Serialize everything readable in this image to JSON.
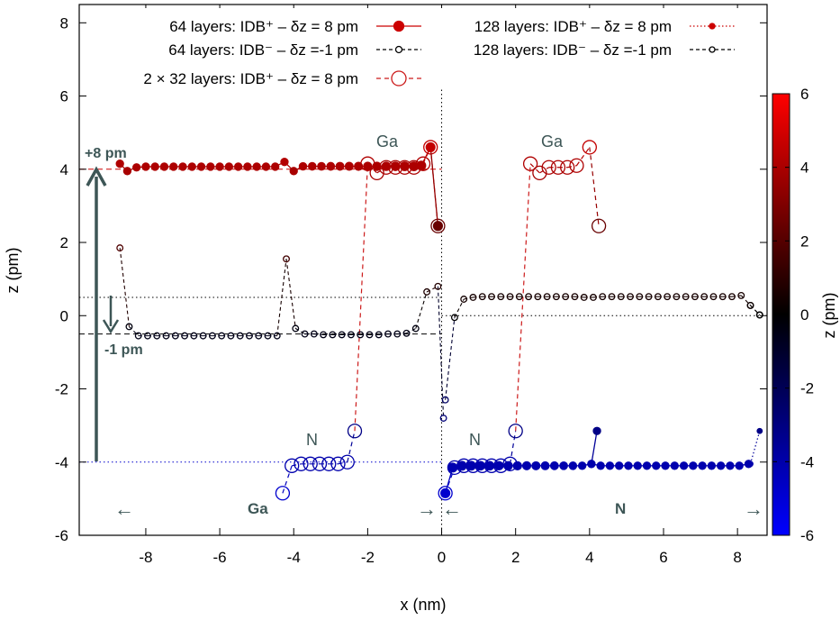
{
  "chart_data": {
    "type": "line",
    "title": "",
    "xlabel": "x (nm)",
    "ylabel": "z (pm)",
    "xlim": [
      -9.8,
      8.8
    ],
    "ylim": [
      -6,
      8.5
    ],
    "x_ticks": [
      -8,
      -6,
      -4,
      -2,
      0,
      2,
      4,
      6,
      8
    ],
    "y_ticks": [
      -6,
      -4,
      -2,
      0,
      2,
      4,
      6,
      8
    ],
    "grid": false,
    "legend_placement": "top",
    "colorbar": {
      "label": "z (pm)",
      "range": [
        -6,
        6
      ],
      "ticks": [
        -6,
        -4,
        -2,
        0,
        2,
        4,
        6
      ],
      "colors": [
        "#0000ff",
        "#000000",
        "#ff0000"
      ]
    },
    "series": [
      {
        "name": "64 layers: IDB⁺ – δz = 8 pm",
        "style": "solid-filled-large",
        "groups": [
          {
            "kind": "Ga",
            "x": [
              -8.7,
              -8.5,
              -8.25,
              -8.0,
              -7.75,
              -7.5,
              -7.25,
              -7.0,
              -6.75,
              -6.5,
              -6.25,
              -6.0,
              -5.75,
              -5.5,
              -5.25,
              -5.0,
              -4.75,
              -4.5,
              -4.25,
              -4.0,
              -3.75,
              -3.5,
              -3.25,
              -3.0,
              -2.75,
              -2.5,
              -2.25,
              -2.0,
              -1.75,
              -1.5,
              -1.25,
              -1.0,
              -0.75,
              -0.55,
              -0.3,
              -0.1
            ],
            "y": [
              4.15,
              3.95,
              4.05,
              4.07,
              4.07,
              4.07,
              4.07,
              4.07,
              4.07,
              4.07,
              4.07,
              4.07,
              4.07,
              4.07,
              4.07,
              4.07,
              4.07,
              4.07,
              4.2,
              3.95,
              4.08,
              4.08,
              4.08,
              4.08,
              4.08,
              4.08,
              4.08,
              4.08,
              4.08,
              4.08,
              4.08,
              4.08,
              4.08,
              4.1,
              4.6,
              2.45
            ]
          },
          {
            "kind": "N",
            "x": [
              0.1,
              0.3,
              0.55,
              0.8,
              1.05,
              1.3,
              1.55,
              1.8,
              2.05,
              2.3,
              2.55,
              2.8,
              3.05,
              3.3,
              3.55,
              3.8,
              4.05,
              4.3,
              4.55,
              4.8,
              5.05,
              5.3,
              5.55,
              5.8,
              6.05,
              6.3,
              6.55,
              6.8,
              7.05,
              7.3,
              7.55,
              7.8,
              8.05,
              8.3
            ],
            "y": [
              -4.85,
              -4.15,
              -4.1,
              -4.1,
              -4.1,
              -4.1,
              -4.1,
              -4.1,
              -4.1,
              -4.1,
              -4.1,
              -4.1,
              -4.1,
              -4.1,
              -4.1,
              -4.1,
              -4.05,
              -4.1,
              -4.1,
              -4.1,
              -4.1,
              -4.1,
              -4.1,
              -4.1,
              -4.1,
              -4.1,
              -4.1,
              -4.1,
              -4.1,
              -4.1,
              -4.1,
              -4.1,
              -4.1,
              -4.05
            ]
          },
          {
            "kind": "N-tail",
            "x": [
              4.05,
              4.2
            ],
            "y": [
              -4.05,
              -3.15
            ]
          }
        ]
      },
      {
        "name": "64 layers: IDB⁻ – δz =-1 pm",
        "style": "dashed-open-small",
        "groups": [
          {
            "kind": "left",
            "x": [
              -8.7,
              -8.45,
              -8.2,
              -7.95,
              -7.7,
              -7.45,
              -7.2,
              -6.95,
              -6.7,
              -6.45,
              -6.2,
              -5.95,
              -5.7,
              -5.45,
              -5.2,
              -4.95,
              -4.7,
              -4.45,
              -4.2,
              -3.95,
              -3.7,
              -3.45,
              -3.2,
              -2.95,
              -2.7,
              -2.45,
              -2.2,
              -1.95,
              -1.7,
              -1.45,
              -1.2,
              -0.95,
              -0.7,
              -0.4,
              -0.1,
              0.05
            ],
            "y": [
              1.85,
              -0.3,
              -0.55,
              -0.55,
              -0.55,
              -0.55,
              -0.55,
              -0.55,
              -0.55,
              -0.55,
              -0.55,
              -0.55,
              -0.55,
              -0.55,
              -0.55,
              -0.55,
              -0.55,
              -0.55,
              1.55,
              -0.35,
              -0.5,
              -0.5,
              -0.52,
              -0.52,
              -0.52,
              -0.52,
              -0.52,
              -0.52,
              -0.52,
              -0.5,
              -0.5,
              -0.48,
              -0.35,
              0.65,
              0.8,
              -2.8
            ]
          },
          {
            "kind": "right",
            "x": [
              0.1,
              0.35,
              0.6,
              0.85,
              1.1,
              1.35,
              1.6,
              1.85,
              2.1,
              2.35,
              2.6,
              2.85,
              3.1,
              3.35,
              3.6,
              3.85,
              4.1,
              4.35,
              4.6,
              4.85,
              5.1,
              5.35,
              5.6,
              5.85,
              6.1,
              6.35,
              6.6,
              6.85,
              7.1,
              7.35,
              7.6,
              7.85,
              8.1,
              8.35,
              8.6
            ],
            "y": [
              -2.3,
              -0.05,
              0.45,
              0.5,
              0.52,
              0.52,
              0.52,
              0.52,
              0.52,
              0.52,
              0.52,
              0.52,
              0.52,
              0.52,
              0.52,
              0.5,
              0.5,
              0.52,
              0.52,
              0.52,
              0.52,
              0.52,
              0.52,
              0.52,
              0.52,
              0.52,
              0.52,
              0.52,
              0.52,
              0.52,
              0.52,
              0.52,
              0.55,
              0.28,
              0.02
            ]
          }
        ]
      },
      {
        "name": "2 × 32 layers: IDB⁺ – δz = 8 pm",
        "style": "dashed-open-large",
        "groups": [
          {
            "kind": "Ga-left",
            "x": [
              -2.0,
              -1.75,
              -1.5,
              -1.25,
              -1.0,
              -0.75,
              -0.5,
              -0.3,
              -0.1
            ],
            "y": [
              4.15,
              3.9,
              4.05,
              4.05,
              4.05,
              4.05,
              4.15,
              4.6,
              2.45
            ]
          },
          {
            "kind": "N-left",
            "x": [
              -4.3,
              -4.05,
              -3.8,
              -3.55,
              -3.3,
              -3.05,
              -2.8,
              -2.55,
              -2.35
            ],
            "y": [
              -4.85,
              -4.1,
              -4.05,
              -4.05,
              -4.05,
              -4.05,
              -4.05,
              -4.0,
              -3.15
            ]
          },
          {
            "kind": "Ga-right",
            "x": [
              2.4,
              2.65,
              2.9,
              3.15,
              3.4,
              3.65,
              4.0,
              4.25
            ],
            "y": [
              4.15,
              3.9,
              4.05,
              4.05,
              4.05,
              4.1,
              4.6,
              2.45
            ]
          },
          {
            "kind": "N-right",
            "x": [
              0.1,
              0.35,
              0.6,
              0.85,
              1.1,
              1.35,
              1.6,
              1.85,
              2.0
            ],
            "y": [
              -4.85,
              -4.15,
              -4.1,
              -4.1,
              -4.1,
              -4.1,
              -4.1,
              -4.05,
              -3.15
            ]
          },
          {
            "kind": "connector-left",
            "x": [
              -2.35,
              -2.0
            ],
            "y": [
              -3.15,
              4.15
            ]
          },
          {
            "kind": "connector-right",
            "x": [
              2.0,
              2.4
            ],
            "y": [
              -3.15,
              4.15
            ]
          }
        ]
      },
      {
        "name": "128 layers: IDB⁺ – δz = 8 pm",
        "style": "dotted-filled-small",
        "groups": [
          {
            "kind": "N-tail",
            "x": [
              8.35,
              8.6
            ],
            "y": [
              -4.05,
              -3.15
            ]
          }
        ]
      },
      {
        "name": "128 layers: IDB⁻ – δz =-1 pm",
        "style": "dashed-open-small",
        "groups": [
          {
            "kind": "tail",
            "x": [
              8.35,
              8.6
            ],
            "y": [
              0.28,
              0.02
            ]
          }
        ]
      }
    ],
    "reference_lines": [
      {
        "y": 4.0,
        "style": "dashed",
        "color": "#cc0000",
        "x_range": [
          -9.8,
          0.0
        ]
      },
      {
        "y": -0.5,
        "style": "dashed",
        "color": "#000000",
        "x_range": [
          -9.8,
          0.0
        ]
      },
      {
        "y": 0.5,
        "style": "dotted",
        "color": "#000000",
        "x_range": [
          -9.8,
          0.0
        ]
      },
      {
        "y": 0.0,
        "style": "dotted",
        "color": "#000000",
        "x_range": [
          0.0,
          8.8
        ]
      },
      {
        "y": -4.0,
        "style": "dotted",
        "color": "#0000cc",
        "x_range": [
          -9.8,
          0.0
        ]
      },
      {
        "x": 0.0,
        "style": "dotted",
        "color": "#000000"
      }
    ],
    "annotations": {
      "plus8": "+8 pm",
      "minus1": "-1 pm",
      "ga_top_left": "Ga",
      "ga_top_right": "Ga",
      "n_left": "N",
      "n_right": "N",
      "region_ga": "Ga",
      "region_n": "N",
      "arrow_left_1": "←",
      "arrow_right_1": "→",
      "arrow_left_2": "←",
      "arrow_right_2": "→"
    }
  }
}
